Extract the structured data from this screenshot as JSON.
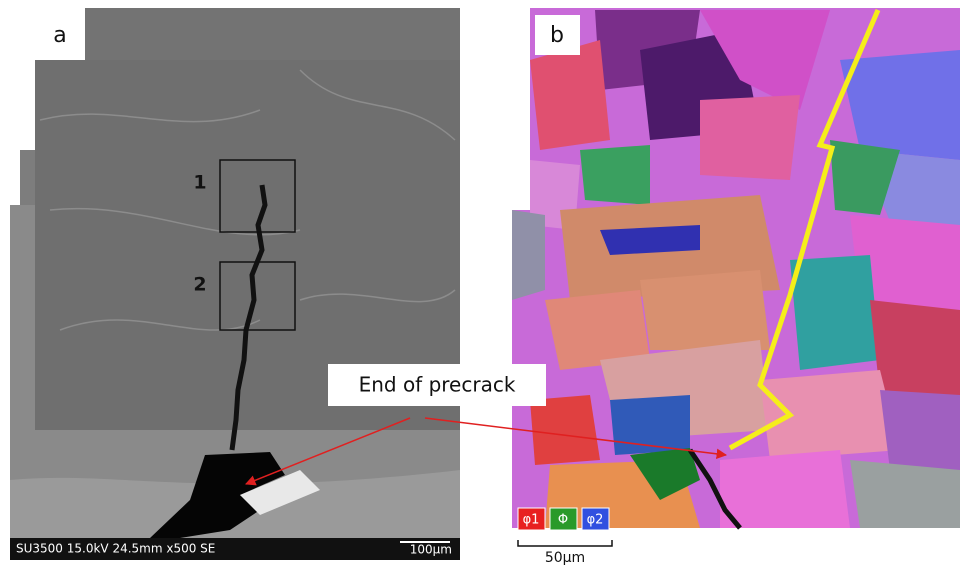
{
  "panels": {
    "a": {
      "label": "a",
      "boxes": [
        "1",
        "2"
      ],
      "info_bar": "SU3500 15.0kV 24.5mm x500 SE",
      "scale": "100µm"
    },
    "b": {
      "label": "b",
      "legend": [
        "φ1",
        "Φ",
        "φ2"
      ],
      "scale": "50µm"
    }
  },
  "annotation": "End of precrack"
}
